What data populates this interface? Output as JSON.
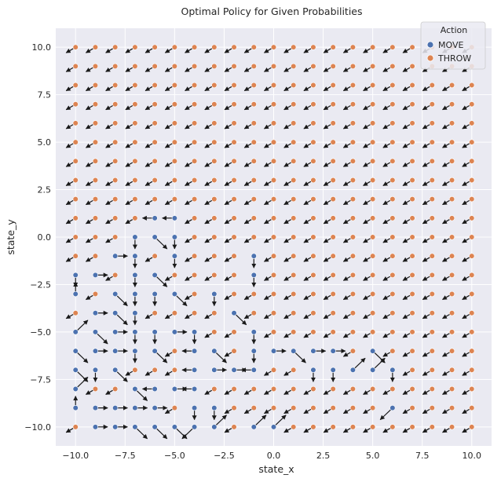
{
  "chart_data": {
    "type": "scatter",
    "title": "Optimal Policy for Given Probabilities",
    "xlabel": "state_x",
    "ylabel": "state_y",
    "xlim": [
      -11,
      11
    ],
    "ylim": [
      -11,
      11
    ],
    "xticks": [
      -10.0,
      -7.5,
      -5.0,
      -2.5,
      0.0,
      2.5,
      5.0,
      7.5,
      10.0
    ],
    "yticks": [
      -10.0,
      -7.5,
      -5.0,
      -2.5,
      0.0,
      2.5,
      5.0,
      7.5,
      10.0
    ],
    "tick_labels_x": [
      "−10.0",
      "−7.5",
      "−5.0",
      "−2.5",
      "0.0",
      "2.5",
      "5.0",
      "7.5",
      "10.0"
    ],
    "tick_labels_y": [
      "−10.0",
      "−7.5",
      "−5.0",
      "−2.5",
      "0.0",
      "2.5",
      "5.0",
      "7.5",
      "10.0"
    ],
    "grid": true,
    "background_color": "#eaeaf2",
    "legend": {
      "title": "Action",
      "placement": "top-right",
      "entries": [
        {
          "name": "MOVE",
          "color": "#4c72b0"
        },
        {
          "name": "THROW",
          "color": "#dd8452"
        }
      ]
    },
    "throw_arrow_direction": "toward bottom-left",
    "move_points": [
      [
        -10,
        -2
      ],
      [
        -10,
        -3
      ],
      [
        -10,
        -5
      ],
      [
        -10,
        -6
      ],
      [
        -10,
        -7
      ],
      [
        -10,
        -8
      ],
      [
        -10,
        -9
      ],
      [
        -9,
        -2
      ],
      [
        -9,
        -4
      ],
      [
        -9,
        -5
      ],
      [
        -9,
        -6
      ],
      [
        -9,
        -7
      ],
      [
        -9,
        -9
      ],
      [
        -9,
        -10
      ],
      [
        -8,
        -1
      ],
      [
        -8,
        -3
      ],
      [
        -8,
        -4
      ],
      [
        -8,
        -5
      ],
      [
        -8,
        -6
      ],
      [
        -8,
        -7
      ],
      [
        -8,
        -9
      ],
      [
        -8,
        -10
      ],
      [
        -7,
        0
      ],
      [
        -7,
        -1
      ],
      [
        -7,
        -2
      ],
      [
        -7,
        -3
      ],
      [
        -7,
        -4
      ],
      [
        -7,
        -5
      ],
      [
        -7,
        -6
      ],
      [
        -7,
        -8
      ],
      [
        -7,
        -9
      ],
      [
        -7,
        -10
      ],
      [
        -6,
        1
      ],
      [
        -6,
        0
      ],
      [
        -6,
        -2
      ],
      [
        -6,
        -3
      ],
      [
        -6,
        -5
      ],
      [
        -6,
        -6
      ],
      [
        -6,
        -8
      ],
      [
        -6,
        -9
      ],
      [
        -6,
        -10
      ],
      [
        -5,
        1
      ],
      [
        -5,
        0
      ],
      [
        -5,
        -1
      ],
      [
        -5,
        -3
      ],
      [
        -5,
        -5
      ],
      [
        -5,
        -8
      ],
      [
        -5,
        -10
      ],
      [
        -4,
        -5
      ],
      [
        -4,
        -6
      ],
      [
        -4,
        -7
      ],
      [
        -4,
        -8
      ],
      [
        -4,
        -9
      ],
      [
        -4,
        -10
      ],
      [
        -3,
        -3
      ],
      [
        -3,
        -6
      ],
      [
        -3,
        -7
      ],
      [
        -3,
        -9
      ],
      [
        -3,
        -10
      ],
      [
        -2,
        -4
      ],
      [
        -2,
        -7
      ],
      [
        -1,
        -1
      ],
      [
        -1,
        -2
      ],
      [
        -1,
        -5
      ],
      [
        -1,
        -6
      ],
      [
        -1,
        -7
      ],
      [
        -1,
        -10
      ],
      [
        0,
        -6
      ],
      [
        0,
        -10
      ],
      [
        1,
        -6
      ],
      [
        2,
        -6
      ],
      [
        2,
        -7
      ],
      [
        3,
        -6
      ],
      [
        3,
        -7
      ],
      [
        4,
        -7
      ],
      [
        5,
        -6
      ],
      [
        5,
        -7
      ],
      [
        6,
        -7
      ],
      [
        6,
        -9
      ]
    ],
    "move_arrows": [
      [
        -10,
        -2,
        0,
        -1
      ],
      [
        -10,
        -3,
        0,
        1
      ],
      [
        -10,
        -5,
        1,
        1
      ],
      [
        -10,
        -6,
        1,
        -1
      ],
      [
        -10,
        -7,
        1,
        -1
      ],
      [
        -10,
        -8,
        1,
        1
      ],
      [
        -10,
        -9,
        0,
        1
      ],
      [
        -9,
        -2,
        1,
        0
      ],
      [
        -9,
        -4,
        1,
        0
      ],
      [
        -9,
        -5,
        1,
        -1
      ],
      [
        -9,
        -6,
        1,
        0
      ],
      [
        -9,
        -7,
        0,
        -1
      ],
      [
        -9,
        -9,
        1,
        0
      ],
      [
        -9,
        -10,
        1,
        0
      ],
      [
        -8,
        -1,
        1,
        0
      ],
      [
        -8,
        -3,
        1,
        -1
      ],
      [
        -8,
        -4,
        1,
        -1
      ],
      [
        -8,
        -5,
        1,
        0
      ],
      [
        -8,
        -6,
        1,
        0
      ],
      [
        -8,
        -7,
        1,
        -1
      ],
      [
        -8,
        -9,
        1,
        0
      ],
      [
        -8,
        -10,
        1,
        0
      ],
      [
        -7,
        0,
        0,
        -1
      ],
      [
        -7,
        -1,
        0,
        -1
      ],
      [
        -7,
        -2,
        0,
        -1
      ],
      [
        -7,
        -3,
        0,
        -1
      ],
      [
        -7,
        -4,
        0,
        -1
      ],
      [
        -7,
        -5,
        0,
        -1
      ],
      [
        -7,
        -6,
        0,
        -1
      ],
      [
        -7,
        -8,
        1,
        -1
      ],
      [
        -7,
        -9,
        1,
        0
      ],
      [
        -7,
        -10,
        1,
        -1
      ],
      [
        -6,
        1,
        -1,
        0
      ],
      [
        -6,
        0,
        1,
        -1
      ],
      [
        -6,
        -2,
        1,
        -1
      ],
      [
        -6,
        -3,
        0,
        -1
      ],
      [
        -6,
        -5,
        0,
        -1
      ],
      [
        -6,
        -6,
        1,
        -1
      ],
      [
        -6,
        -8,
        -1,
        0
      ],
      [
        -6,
        -9,
        1,
        0
      ],
      [
        -6,
        -10,
        1,
        -1
      ],
      [
        -5,
        1,
        -1,
        0
      ],
      [
        -5,
        0,
        0,
        -1
      ],
      [
        -5,
        -1,
        0,
        -1
      ],
      [
        -5,
        -3,
        1,
        -1
      ],
      [
        -5,
        -5,
        1,
        0
      ],
      [
        -5,
        -8,
        1,
        0
      ],
      [
        -5,
        -10,
        1,
        -1
      ],
      [
        -4,
        -5,
        0,
        -1
      ],
      [
        -4,
        -6,
        -1,
        0
      ],
      [
        -4,
        -7,
        -1,
        0
      ],
      [
        -4,
        -8,
        -1,
        0
      ],
      [
        -4,
        -9,
        0,
        -1
      ],
      [
        -4,
        -10,
        -1,
        -1
      ],
      [
        -3,
        -3,
        0,
        -1
      ],
      [
        -3,
        -6,
        1,
        -1
      ],
      [
        -3,
        -7,
        1,
        0
      ],
      [
        -3,
        -9,
        0,
        -1
      ],
      [
        -3,
        -10,
        1,
        1
      ],
      [
        -2,
        -4,
        1,
        -1
      ],
      [
        -2,
        -7,
        1,
        0
      ],
      [
        -1,
        -1,
        0,
        -1
      ],
      [
        -1,
        -2,
        0,
        -1
      ],
      [
        -1,
        -5,
        0,
        -1
      ],
      [
        -1,
        -6,
        0,
        -1
      ],
      [
        -1,
        -7,
        -1,
        0
      ],
      [
        -1,
        -10,
        1,
        1
      ],
      [
        0,
        -6,
        1,
        0
      ],
      [
        0,
        -10,
        1,
        1
      ],
      [
        1,
        -6,
        1,
        -1
      ],
      [
        2,
        -6,
        1,
        0
      ],
      [
        2,
        -7,
        0,
        -1
      ],
      [
        3,
        -6,
        1,
        0
      ],
      [
        3,
        -7,
        0,
        -1
      ],
      [
        4,
        -7,
        1,
        1
      ],
      [
        5,
        -6,
        1,
        -1
      ],
      [
        5,
        -7,
        1,
        1
      ],
      [
        6,
        -7,
        0,
        -1
      ],
      [
        6,
        -9,
        -1,
        -1
      ]
    ]
  }
}
